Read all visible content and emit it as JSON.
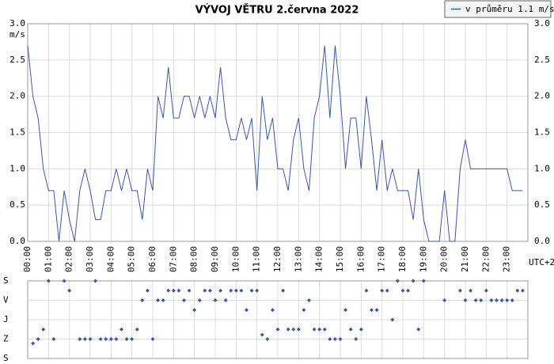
{
  "chart_data": [
    {
      "type": "line",
      "title": "VÝVOJ VĚTRU  2.června 2022",
      "y_label": "m/s",
      "x_label": "UTC+2",
      "x": [
        0,
        0.25,
        0.5,
        0.75,
        1,
        1.25,
        1.5,
        1.75,
        2,
        2.25,
        2.5,
        2.75,
        3,
        3.25,
        3.5,
        3.75,
        4,
        4.25,
        4.5,
        4.75,
        5,
        5.25,
        5.5,
        5.75,
        6,
        6.25,
        6.5,
        6.75,
        7,
        7.25,
        7.5,
        7.75,
        8,
        8.25,
        8.5,
        8.75,
        9,
        9.25,
        9.5,
        9.75,
        10,
        10.25,
        10.5,
        10.75,
        11,
        11.25,
        11.5,
        11.75,
        12,
        12.25,
        12.5,
        12.75,
        13,
        13.25,
        13.5,
        13.75,
        14,
        14.25,
        14.5,
        14.75,
        15,
        15.25,
        15.5,
        15.75,
        16,
        16.25,
        16.5,
        16.75,
        17,
        17.25,
        17.5,
        17.75,
        18,
        18.25,
        18.5,
        18.75,
        19,
        19.25,
        19.5,
        19.75,
        20,
        20.25,
        20.5,
        20.75,
        21,
        21.25,
        21.5,
        21.75,
        22,
        22.25,
        22.5,
        22.75,
        23,
        23.25,
        23.5,
        23.75
      ],
      "series": [
        {
          "name": "v průměru 1.1 m/s",
          "color": "#3a56a6",
          "values": [
            2.7,
            2.0,
            1.7,
            1.0,
            0.7,
            0.7,
            0.0,
            0.7,
            0.3,
            0.0,
            0.7,
            1.0,
            0.7,
            0.3,
            0.3,
            0.7,
            0.7,
            1.0,
            0.7,
            1.0,
            0.7,
            0.7,
            0.3,
            1.0,
            0.7,
            2.0,
            1.7,
            2.4,
            1.7,
            1.7,
            2.0,
            2.0,
            1.7,
            2.0,
            1.7,
            2.0,
            1.7,
            2.4,
            1.7,
            1.4,
            1.4,
            1.7,
            1.4,
            1.7,
            0.7,
            2.0,
            1.4,
            1.7,
            1.0,
            1.0,
            0.7,
            1.4,
            1.7,
            1.0,
            0.7,
            1.7,
            2.0,
            2.7,
            1.7,
            2.7,
            2.0,
            1.0,
            1.7,
            1.7,
            1.0,
            2.0,
            1.4,
            0.7,
            1.4,
            0.7,
            1.0,
            0.7,
            0.7,
            0.7,
            0.3,
            1.0,
            0.3,
            0.0,
            0.0,
            0.0,
            0.7,
            0.0,
            0.0,
            1.0,
            1.4,
            1.0,
            1.0,
            1.0,
            1.0,
            1.0,
            1.0,
            1.0,
            1.0,
            0.7,
            0.7,
            0.7
          ]
        }
      ],
      "xlim": [
        0,
        24
      ],
      "xticks": [
        {
          "value": 0,
          "label": "00:00"
        },
        {
          "value": 1,
          "label": "01:00"
        },
        {
          "value": 2,
          "label": "02:00"
        },
        {
          "value": 3,
          "label": "03:00"
        },
        {
          "value": 4,
          "label": "04:00"
        },
        {
          "value": 5,
          "label": "05:00"
        },
        {
          "value": 6,
          "label": "06:00"
        },
        {
          "value": 7,
          "label": "07:00"
        },
        {
          "value": 8,
          "label": "08:00"
        },
        {
          "value": 9,
          "label": "09:00"
        },
        {
          "value": 10,
          "label": "10:00"
        },
        {
          "value": 11,
          "label": "11:00"
        },
        {
          "value": 12,
          "label": "12:00"
        },
        {
          "value": 13,
          "label": "13:00"
        },
        {
          "value": 14,
          "label": "14:00"
        },
        {
          "value": 15,
          "label": "15:00"
        },
        {
          "value": 16,
          "label": "16:00"
        },
        {
          "value": 17,
          "label": "17:00"
        },
        {
          "value": 18,
          "label": "18:00"
        },
        {
          "value": 19,
          "label": "19:00"
        },
        {
          "value": 20,
          "label": "20:00"
        },
        {
          "value": 21,
          "label": "21:00"
        },
        {
          "value": 22,
          "label": "22:00"
        },
        {
          "value": 23,
          "label": "23:00"
        }
      ],
      "ylim": [
        0,
        3
      ],
      "yticks": [
        {
          "value": 0,
          "label": "0.0"
        },
        0.5,
        {
          "value": 1,
          "label": "1.0"
        },
        1.5,
        {
          "value": 2,
          "label": "2.0"
        },
        2.5,
        {
          "value": 3,
          "label": "3.0"
        }
      ],
      "grid": true,
      "legend": "top-right"
    },
    {
      "type": "scatter",
      "color": "#3a56a6",
      "x": [
        0,
        0.25,
        0.5,
        0.75,
        1,
        1.25,
        1.5,
        1.75,
        2,
        2.25,
        2.5,
        2.75,
        3,
        3.25,
        3.5,
        3.75,
        4,
        4.25,
        4.5,
        4.75,
        5,
        5.25,
        5.5,
        5.75,
        6,
        6.25,
        6.5,
        6.75,
        7,
        7.25,
        7.5,
        7.75,
        8,
        8.25,
        8.5,
        8.75,
        9,
        9.25,
        9.5,
        9.75,
        10,
        10.25,
        10.5,
        10.75,
        11,
        11.25,
        11.5,
        11.75,
        12,
        12.25,
        12.5,
        12.75,
        13,
        13.25,
        13.5,
        13.75,
        14,
        14.25,
        14.5,
        14.75,
        15,
        15.25,
        15.5,
        15.75,
        16,
        16.25,
        16.5,
        16.75,
        17,
        17.25,
        17.5,
        17.75,
        18,
        18.25,
        18.5,
        18.75,
        19,
        19.25,
        19.5,
        19.75,
        20,
        20.25,
        20.5,
        20.75,
        21,
        21.25,
        21.5,
        21.75,
        22,
        22.25,
        22.5,
        22.75,
        23,
        23.25,
        23.5,
        23.75
      ],
      "values": [
        null,
        290,
        270,
        225,
        0,
        270,
        null,
        0,
        45,
        null,
        270,
        270,
        270,
        0,
        270,
        270,
        270,
        270,
        225,
        270,
        270,
        225,
        90,
        45,
        270,
        90,
        90,
        45,
        45,
        45,
        90,
        45,
        135,
        90,
        45,
        45,
        90,
        45,
        90,
        45,
        45,
        45,
        135,
        45,
        45,
        250,
        270,
        135,
        225,
        45,
        225,
        225,
        225,
        135,
        90,
        225,
        225,
        225,
        270,
        270,
        270,
        135,
        225,
        270,
        225,
        45,
        135,
        135,
        45,
        45,
        180,
        0,
        45,
        45,
        0,
        225,
        0,
        null,
        null,
        null,
        90,
        null,
        null,
        45,
        90,
        45,
        90,
        90,
        45,
        90,
        90,
        90,
        90,
        90,
        45,
        45
      ],
      "xlim": [
        0,
        24
      ],
      "ylim": [
        360,
        0
      ],
      "yticks": [
        {
          "value": 0,
          "label": "S"
        },
        {
          "value": 90,
          "label": "V"
        },
        {
          "value": 180,
          "label": "J"
        },
        {
          "value": 270,
          "label": "Z"
        },
        {
          "value": 360,
          "label": "S"
        }
      ],
      "grid": true
    }
  ]
}
